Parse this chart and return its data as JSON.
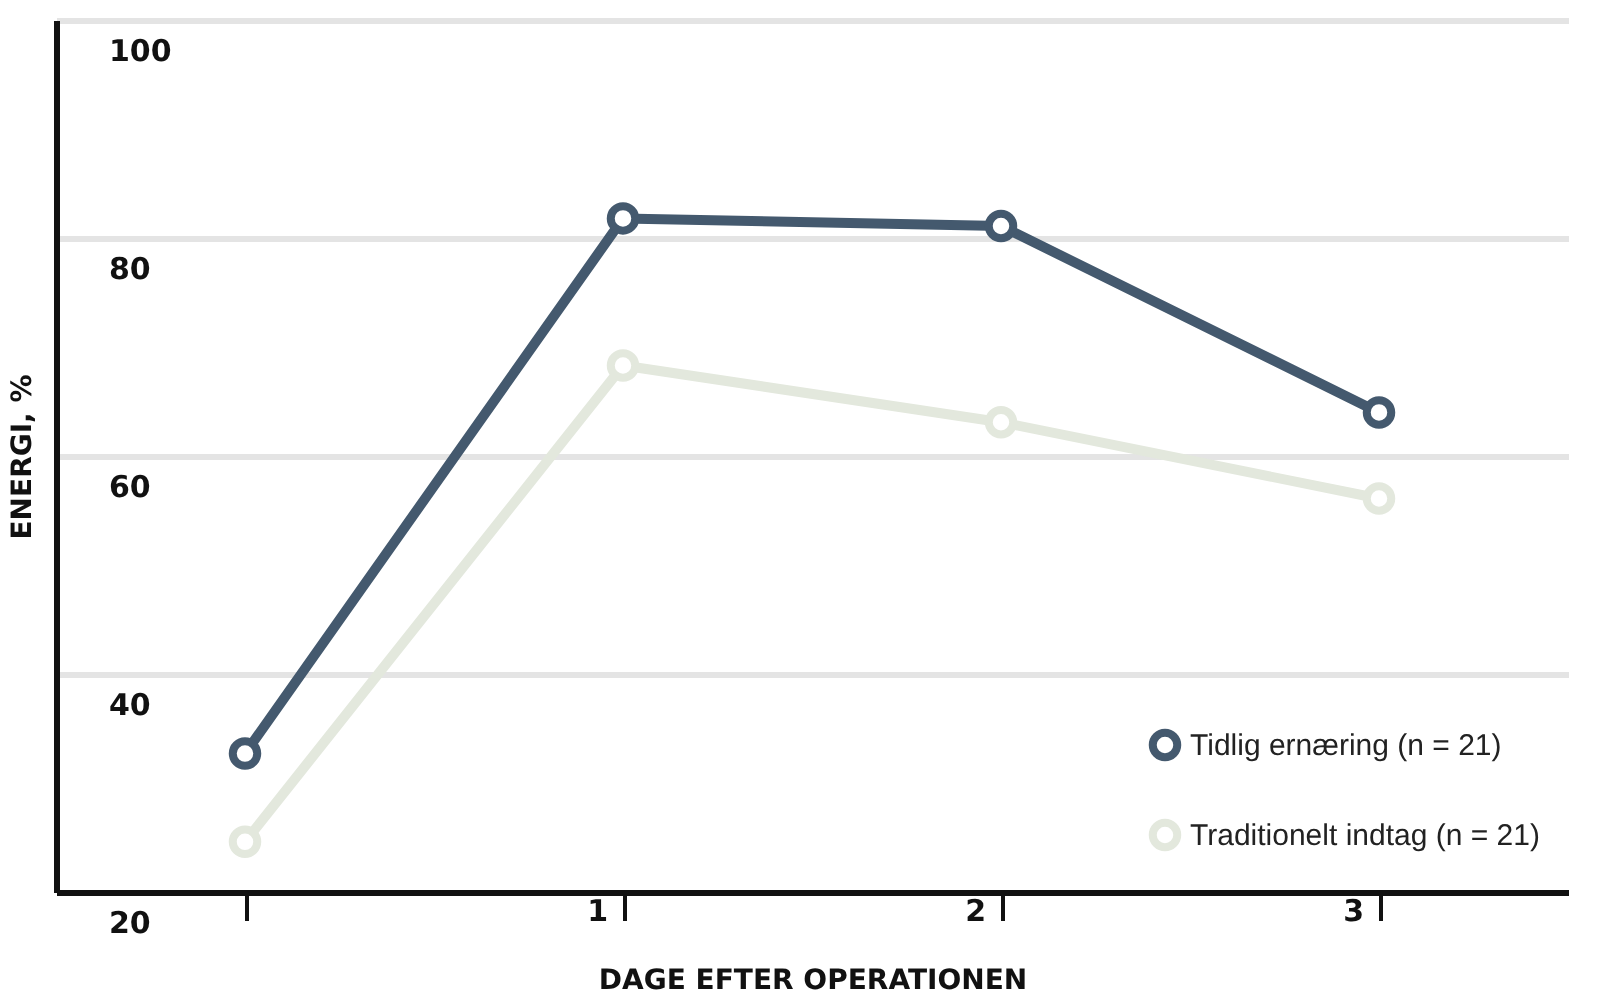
{
  "chart_data": {
    "type": "line",
    "xlabel": "DAGE EFTER OPERATIONEN",
    "ylabel": "ENERGI, %",
    "categories": [
      null,
      "1",
      "2",
      "3"
    ],
    "series": [
      {
        "name": "Tidlig ernæring (n = 21)",
        "color": "#44596e",
        "values": [
          32.7,
          81.8,
          81.1,
          64.0
        ]
      },
      {
        "name": "Traditionelt indtag (n = 21)",
        "color": "#e3e8dd",
        "values": [
          24.6,
          68.3,
          63.1,
          56.1
        ]
      }
    ],
    "ylim": [
      20,
      100
    ],
    "yticks": [
      20,
      40,
      60,
      80,
      100
    ],
    "grid": "y",
    "legend": "bottom right",
    "marker": "circle",
    "line_style": "solid"
  }
}
